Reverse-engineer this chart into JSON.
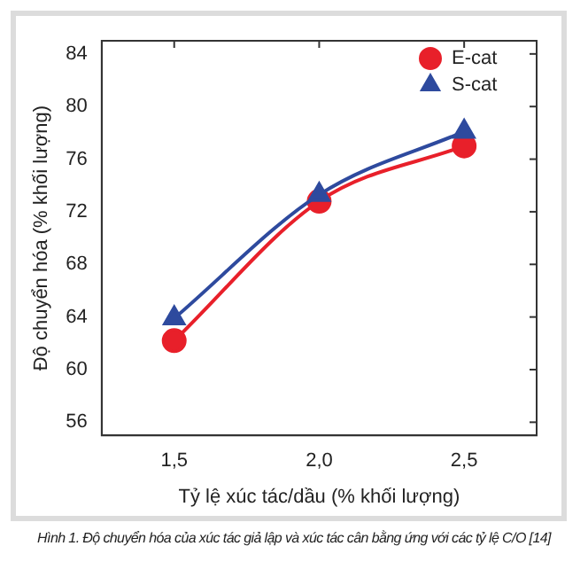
{
  "chart_data": {
    "type": "line",
    "xlabel": "Tỷ lệ xúc tác/dầu (% khối lượng)",
    "ylabel": "Độ chuyển hóa (% khối lượng)",
    "x": [
      1.5,
      2.0,
      2.5
    ],
    "series": [
      {
        "name": "E-cat",
        "color": "#e8202a",
        "marker": "circle",
        "values": [
          62.2,
          72.8,
          77.0
        ]
      },
      {
        "name": "S-cat",
        "color": "#2e4a9e",
        "marker": "triangle",
        "values": [
          63.9,
          73.3,
          78.1
        ]
      }
    ],
    "xlim": [
      1.25,
      2.75
    ],
    "xticks": [
      {
        "value": 1.5,
        "label": "1,5"
      },
      {
        "value": 2.0,
        "label": "2,0"
      },
      {
        "value": 2.5,
        "label": "2,5"
      }
    ],
    "ylim": [
      55,
      85
    ],
    "yticks": [
      56,
      60,
      64,
      68,
      72,
      76,
      80,
      84
    ],
    "grid": false,
    "legend": "top right",
    "annotations": [
      "Hình 1. Độ chuyển hóa của xúc tác giả lập và xúc tác cân bằng ứng với các tỷ lệ C/O [14]"
    ]
  }
}
